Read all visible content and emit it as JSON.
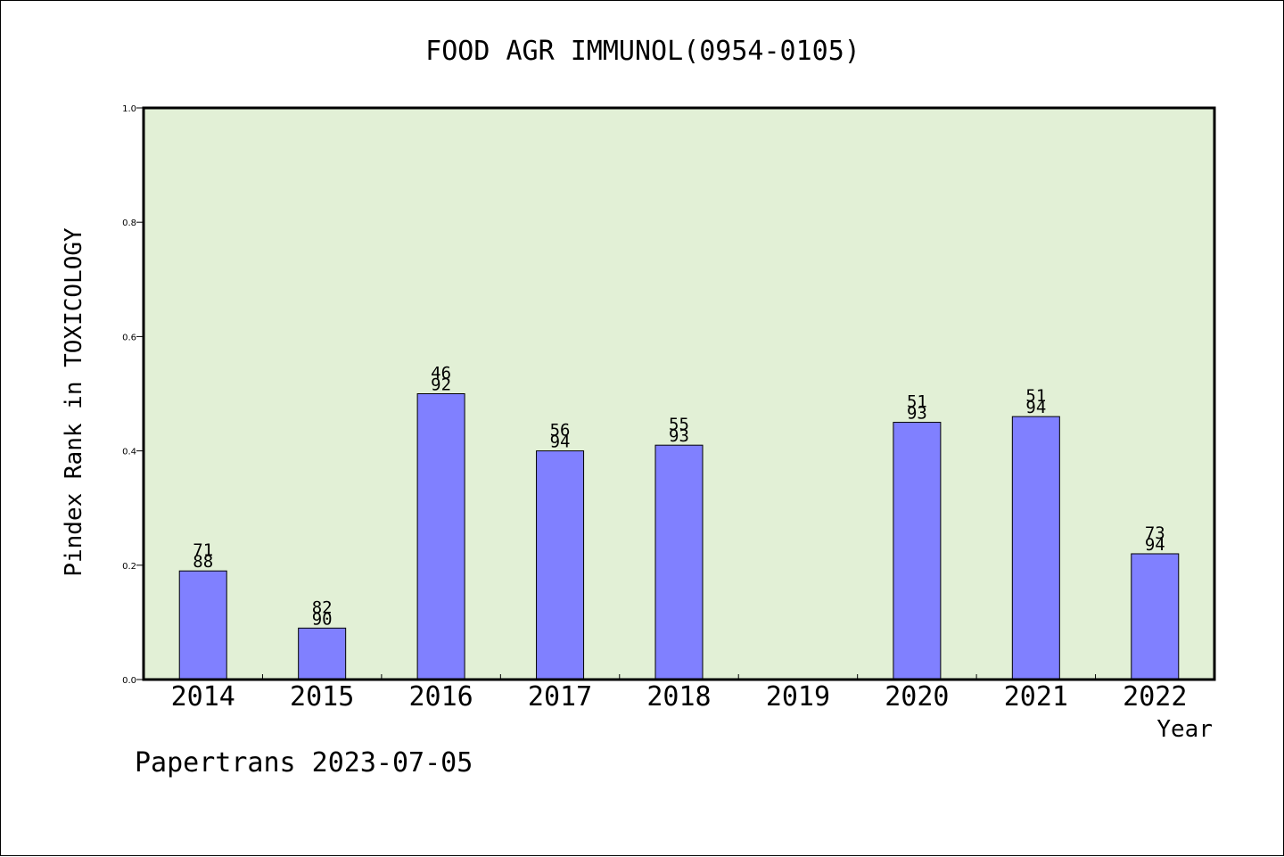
{
  "chart_data": {
    "type": "bar",
    "title": "FOOD AGR IMMUNOL(0954-0105)",
    "xlabel": "Year",
    "ylabel": "Pindex Rank in TOXICOLOGY",
    "footer": "Papertrans 2023-07-05",
    "categories": [
      "2014",
      "2015",
      "2016",
      "2017",
      "2018",
      "2019",
      "2020",
      "2021",
      "2022"
    ],
    "values": [
      0.19,
      0.09,
      0.5,
      0.4,
      0.41,
      null,
      0.45,
      0.46,
      0.22
    ],
    "label_top": [
      "71",
      "82",
      "46",
      "56",
      "55",
      "",
      "51",
      "51",
      "73"
    ],
    "label_bottom": [
      "88",
      "90",
      "92",
      "94",
      "93",
      "",
      "93",
      "94",
      "94"
    ],
    "ylim": [
      0,
      1.0
    ],
    "yticks": [
      "0.0",
      "0.2",
      "0.4",
      "0.6",
      "0.8",
      "1.0"
    ],
    "grid": false,
    "colors": {
      "plot_background": "#e2f0d6",
      "bar_fill": "#8080ff",
      "bar_stroke": "#000000"
    }
  }
}
